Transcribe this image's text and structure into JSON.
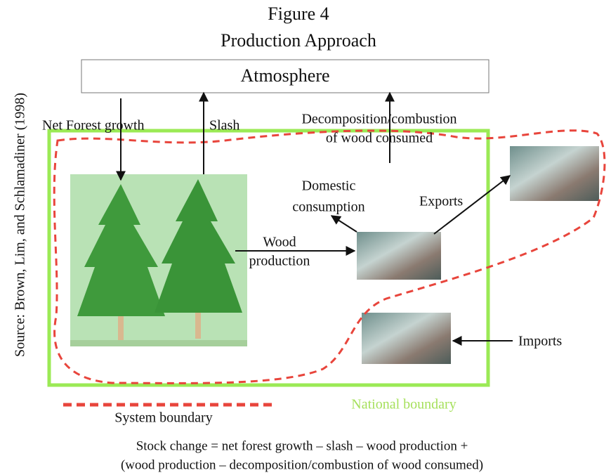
{
  "title": "Figure 4",
  "subtitle": "Production Approach",
  "source": "Source: Brown, Lim, and Schlamadiner (1998)",
  "nodes": {
    "atmosphere": "Atmosphere",
    "net_forest_growth": "Net Forest growth",
    "slash": "Slash",
    "decomposition": [
      "Decomposition/combustion",
      "of wood consumed"
    ],
    "domestic_consumption": [
      "Domestic",
      "consumption"
    ],
    "exports": "Exports",
    "wood_production": [
      "Wood",
      "production"
    ],
    "imports": "Imports"
  },
  "legend": {
    "system_boundary": "System boundary",
    "national_boundary": "National boundary"
  },
  "formula": [
    "Stock change = net forest growth  – slash – wood production +",
    "(wood production  – decomposition/combustion of wood consumed)"
  ]
}
